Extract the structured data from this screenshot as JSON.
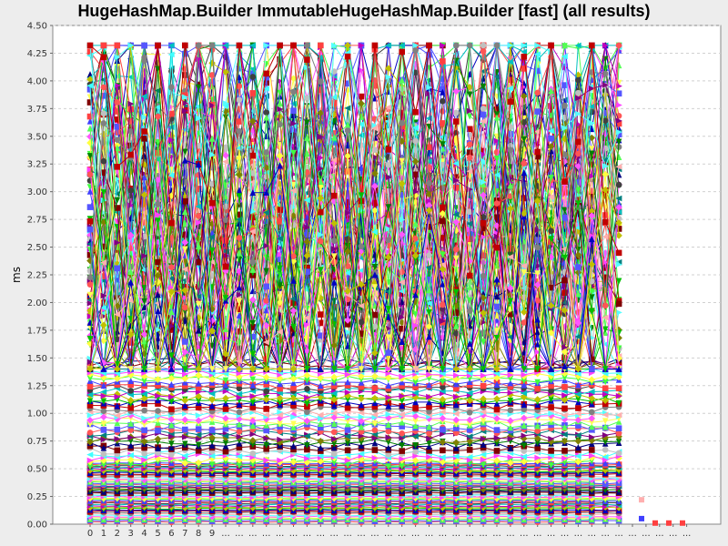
{
  "chart_data": {
    "type": "line",
    "title": "HugeHashMap.Builder ImmutableHugeHashMap.Builder [fast] (all results)",
    "xlabel": "",
    "ylabel": "ms",
    "ylim": [
      0,
      4.5
    ],
    "yticks": [
      "0.00",
      "0.25",
      "0.50",
      "0.75",
      "1.00",
      "1.25",
      "1.50",
      "1.75",
      "2.00",
      "2.25",
      "2.50",
      "2.75",
      "3.00",
      "3.25",
      "3.50",
      "3.75",
      "4.00",
      "4.25",
      "4.50"
    ],
    "x_tick_labels": [
      "0",
      "1",
      "2",
      "3",
      "4",
      "5",
      "6",
      "7",
      "8",
      "9",
      "...",
      "...",
      "...",
      "...",
      "...",
      "...",
      "...",
      "...",
      "...",
      "...",
      "...",
      "...",
      "...",
      "...",
      "...",
      "...",
      "...",
      "...",
      "...",
      "...",
      "...",
      "...",
      "...",
      "...",
      "...",
      "...",
      "...",
      "...",
      "...",
      "...",
      "...",
      "...",
      "...",
      "...",
      "..."
    ],
    "grid": true,
    "legend": "none",
    "series_count_estimate": 180,
    "band_description": [
      {
        "range": [
          0.0,
          0.55
        ],
        "behavior": "flat series, near-constant across x"
      },
      {
        "range": [
          0.55,
          1.5
        ],
        "behavior": "mostly flat with mild variation"
      },
      {
        "range": [
          1.5,
          4.3
        ],
        "behavior": "highly oscillating series"
      }
    ],
    "marker_shapes": [
      "circle",
      "square",
      "triangle-up",
      "triangle-down",
      "diamond",
      "triangle-right",
      "triangle-left"
    ],
    "palette": [
      "#ff5555",
      "#5555ff",
      "#55ff55",
      "#ffff55",
      "#ff55ff",
      "#55ffff",
      "#ffafaf",
      "#808080",
      "#c00000",
      "#0000c0",
      "#00c000",
      "#c0c000",
      "#c000c0",
      "#00c0c0",
      "#404040",
      "#ff4040",
      "#4040ff",
      "#40ff40",
      "#ffff40",
      "#ff40ff",
      "#40ffff",
      "#c0c0c0",
      "#800000",
      "#000080",
      "#008000",
      "#808000",
      "#800080",
      "#008080"
    ]
  }
}
